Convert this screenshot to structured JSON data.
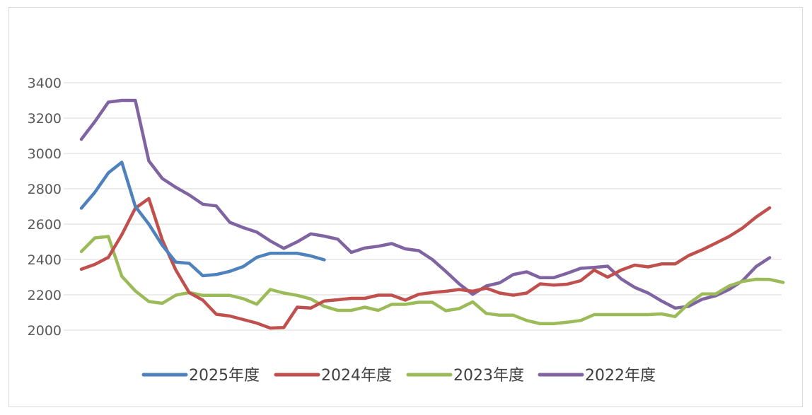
{
  "chart_data": {
    "type": "line",
    "title": "",
    "xlabel": "",
    "ylabel": "",
    "ylim": [
      2000,
      3400
    ],
    "yticks": [
      2000,
      2200,
      2400,
      2600,
      2800,
      3000,
      3200,
      3400
    ],
    "grid": "horizontal",
    "legend": "bottom",
    "series": [
      {
        "name": "2025年度",
        "color": "#4f81bd",
        "values": [
          2690,
          2780,
          2890,
          2950,
          2700,
          2600,
          2480,
          2385,
          2378,
          2308,
          2315,
          2333,
          2360,
          2412,
          2435,
          2435,
          2435,
          2420,
          2398
        ]
      },
      {
        "name": "2024年度",
        "color": "#c0504d",
        "values": [
          2345,
          2372,
          2412,
          2540,
          2690,
          2745,
          2510,
          2340,
          2212,
          2170,
          2090,
          2080,
          2060,
          2040,
          2012,
          2015,
          2130,
          2125,
          2165,
          2172,
          2180,
          2180,
          2198,
          2198,
          2170,
          2203,
          2213,
          2220,
          2230,
          2220,
          2238,
          2210,
          2198,
          2210,
          2262,
          2255,
          2260,
          2280,
          2340,
          2300,
          2340,
          2368,
          2358,
          2375,
          2375,
          2422,
          2455,
          2492,
          2530,
          2578,
          2640,
          2692
        ]
      },
      {
        "name": "2023年度",
        "color": "#9bbb59",
        "values": [
          2445,
          2522,
          2530,
          2305,
          2222,
          2162,
          2152,
          2198,
          2213,
          2197,
          2197,
          2197,
          2178,
          2147,
          2230,
          2210,
          2197,
          2177,
          2135,
          2112,
          2112,
          2130,
          2112,
          2146,
          2146,
          2158,
          2158,
          2110,
          2122,
          2160,
          2095,
          2085,
          2085,
          2055,
          2037,
          2037,
          2045,
          2055,
          2088,
          2088,
          2088,
          2088,
          2088,
          2092,
          2077,
          2150,
          2205,
          2205,
          2250,
          2276,
          2288,
          2287,
          2270
        ]
      },
      {
        "name": "2022年度",
        "color": "#8064a2",
        "values": [
          3080,
          3180,
          3290,
          3300,
          3300,
          2958,
          2858,
          2808,
          2765,
          2713,
          2703,
          2610,
          2580,
          2555,
          2505,
          2463,
          2500,
          2545,
          2532,
          2515,
          2440,
          2465,
          2475,
          2490,
          2460,
          2450,
          2400,
          2333,
          2262,
          2203,
          2250,
          2268,
          2315,
          2330,
          2297,
          2297,
          2322,
          2350,
          2355,
          2362,
          2290,
          2242,
          2210,
          2165,
          2125,
          2135,
          2175,
          2195,
          2230,
          2280,
          2360,
          2410
        ]
      }
    ]
  }
}
